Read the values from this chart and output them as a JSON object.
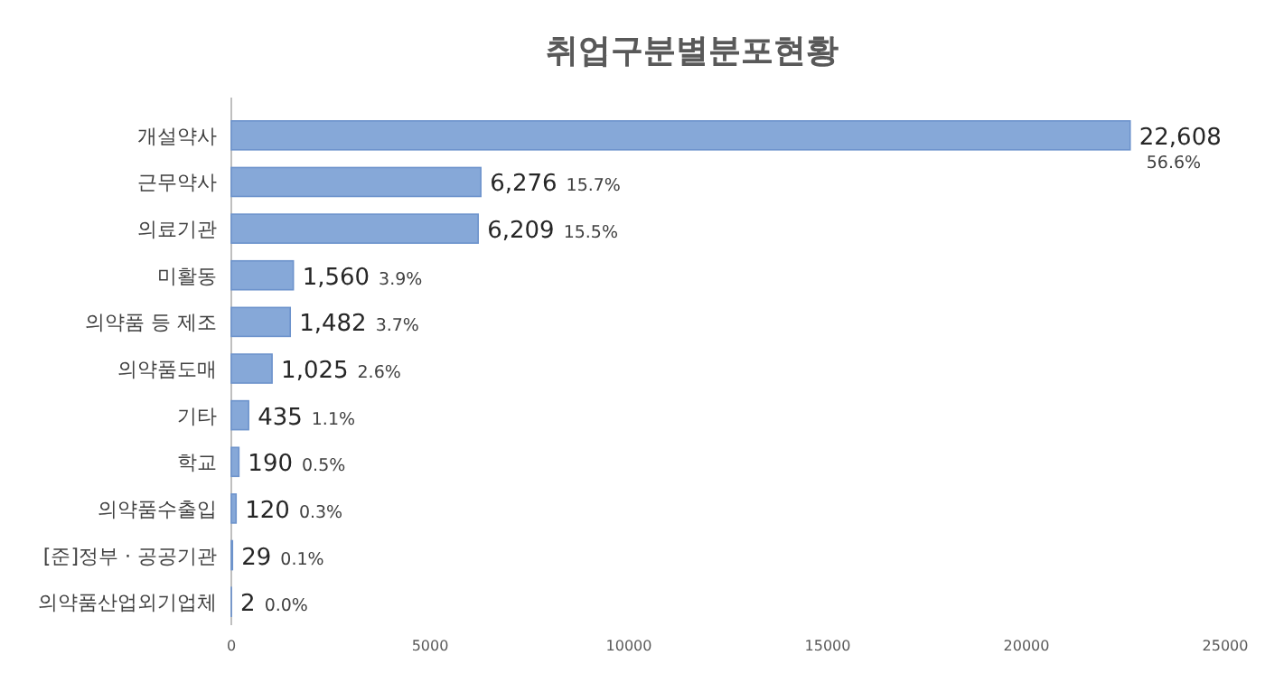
{
  "chart_data": {
    "type": "bar",
    "orientation": "horizontal",
    "title": "취업구분별분포현황",
    "categories": [
      "개설약사",
      "근무약사",
      "의료기관",
      "미활동",
      "의약품 등 제조",
      "의약품도매",
      "기타",
      "학교",
      "의약품수출입",
      "[준]정부 · 공공기관",
      "의약품산업외기업체"
    ],
    "values": [
      22608,
      6276,
      6209,
      1560,
      1482,
      1025,
      435,
      190,
      120,
      29,
      2
    ],
    "value_labels": [
      "22,608 56.6%",
      "6,276 15.7%",
      "6,209 15.5%",
      "1,560 3.9%",
      "1,482 3.7%",
      "1,025 2.6%",
      "435 1.1%",
      "190 0.5%",
      "120 0.3%",
      "29 0.1%",
      "2 0.0%"
    ],
    "color": "#86a8d8",
    "xlim": [
      0,
      25000
    ],
    "xticks": [
      0,
      5000,
      10000,
      15000,
      20000,
      25000
    ],
    "grid": false
  }
}
